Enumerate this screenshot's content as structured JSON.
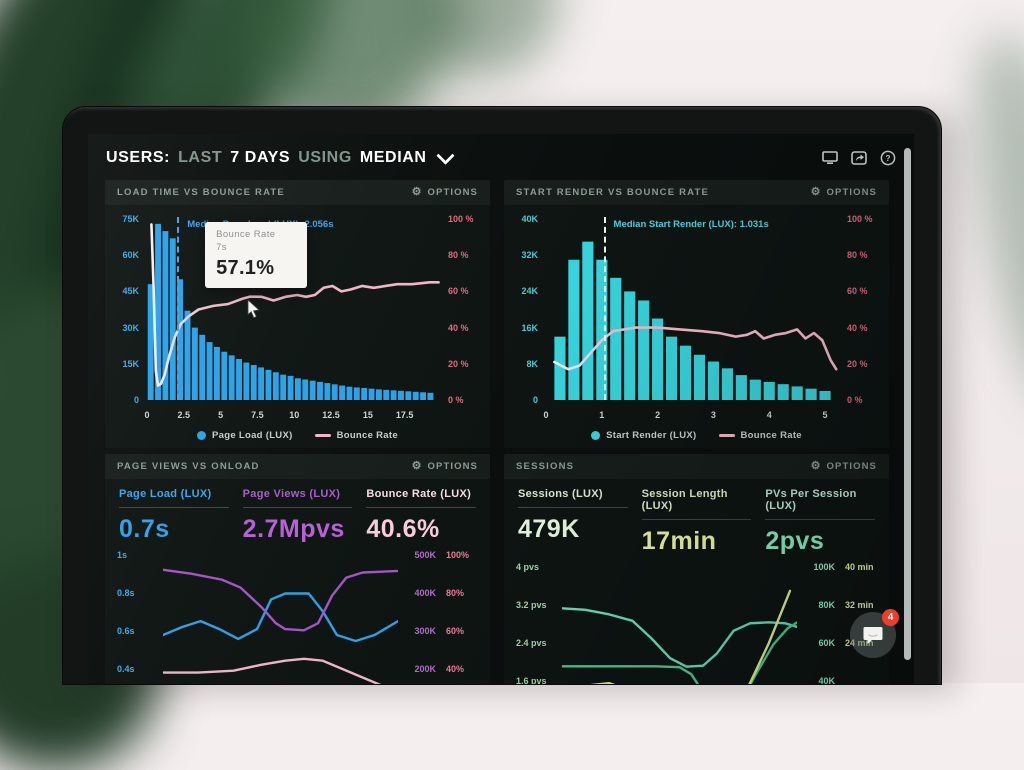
{
  "header": {
    "title_parts": [
      {
        "text": "USERS:"
      },
      {
        "text": "LAST"
      },
      {
        "text": "7 DAYS"
      },
      {
        "text": "USING"
      },
      {
        "text": "MEDIAN"
      }
    ],
    "toolbar_icons": [
      "monitor-icon",
      "share-icon",
      "help-icon"
    ]
  },
  "options_label": "OPTIONS",
  "panels": {
    "load_time": {
      "title": "LOAD TIME VS BOUNCE RATE"
    },
    "start_render": {
      "title": "START RENDER VS BOUNCE RATE"
    },
    "page_views": {
      "title": "PAGE VIEWS VS ONLOAD",
      "metrics": [
        {
          "label": "Page Load (LUX)",
          "value": "0.7s",
          "label_color": "#3aa5ec",
          "value_color": "#2f9fe8"
        },
        {
          "label": "Page Views (LUX)",
          "value": "2.7Mpvs",
          "label_color": "#a65cc8",
          "value_color": "#b75fd6"
        },
        {
          "label": "Bounce Rate (LUX)",
          "value": "40.6%",
          "label_color": "#f3dde6",
          "value_color": "#f6cdda"
        }
      ]
    },
    "sessions": {
      "title": "SESSIONS",
      "metrics": [
        {
          "label": "Sessions (LUX)",
          "value": "479K",
          "label_color": "#dcead9",
          "value_color": "#e7f5e3"
        },
        {
          "label": "Session Length (LUX)",
          "value": "17min",
          "label_color": "#dfe8c8",
          "value_color": "#e9f2a6"
        },
        {
          "label": "PVs Per Session (LUX)",
          "value": "2pvs",
          "label_color": "#bfe8d5",
          "value_color": "#86ecc0"
        }
      ]
    }
  },
  "tooltip": {
    "panel": "load_time",
    "title": "Bounce Rate",
    "subtitle": "7s",
    "value": "57.1%"
  },
  "chat_widget": {
    "badge": "4"
  },
  "chart_data": [
    {
      "id": "load_time",
      "type": "bar+line",
      "title": "LOAD TIME VS BOUNCE RATE",
      "x_min": 0,
      "x_max": 19.9,
      "x_ticks": [
        0,
        2.5,
        5,
        7.5,
        10,
        12.5,
        15,
        17.5
      ],
      "left_axis": {
        "ticks": [
          "75K",
          "60K",
          "45K",
          "30K",
          "15K",
          "0"
        ],
        "color": "#3fa9e8"
      },
      "right_axis": {
        "ticks": [
          "100 %",
          "80 %",
          "60 %",
          "40 %",
          "20 %",
          "0 %"
        ],
        "color": "#e06a82"
      },
      "bars": {
        "name": "Page Load (LUX)",
        "color": "#2aa2e8",
        "unit": "K",
        "y_max": 75,
        "x_start": 0.25,
        "x_step": 0.5,
        "values": [
          48,
          73,
          70,
          67,
          50,
          37,
          30,
          27,
          24,
          22,
          20,
          18.5,
          17,
          15.5,
          14.5,
          13.5,
          12.5,
          11.5,
          10.5,
          10,
          9,
          8.5,
          8,
          7.5,
          7,
          6.5,
          6,
          5.5,
          5.2,
          5,
          4.7,
          4.4,
          4.2,
          4,
          3.8,
          3.6,
          3.4,
          3.2,
          3
        ]
      },
      "line": {
        "name": "Bounce Rate",
        "color": "#f2b6c5",
        "unit": "%",
        "y_max": 100,
        "points": [
          [
            0.3,
            97
          ],
          [
            0.45,
            62
          ],
          [
            0.6,
            16
          ],
          [
            0.75,
            8
          ],
          [
            0.95,
            9
          ],
          [
            1.2,
            14
          ],
          [
            1.5,
            24
          ],
          [
            1.9,
            35
          ],
          [
            2.3,
            42
          ],
          [
            2.8,
            46
          ],
          [
            3.5,
            50
          ],
          [
            4.5,
            52
          ],
          [
            5.5,
            53
          ],
          [
            6.5,
            56
          ],
          [
            7,
            57.1
          ],
          [
            7.8,
            57
          ],
          [
            8.6,
            55
          ],
          [
            9.4,
            57
          ],
          [
            10.2,
            58
          ],
          [
            10.8,
            57
          ],
          [
            11.4,
            58
          ],
          [
            12,
            62
          ],
          [
            12.6,
            63
          ],
          [
            13.2,
            60
          ],
          [
            13.8,
            61
          ],
          [
            14.6,
            63
          ],
          [
            15.4,
            62
          ],
          [
            16.2,
            63
          ],
          [
            17,
            64
          ],
          [
            18,
            64
          ],
          [
            19.2,
            65
          ],
          [
            19.8,
            65
          ]
        ]
      },
      "median": {
        "x": 2.056,
        "label": "Median Page Load (LUX): 2.056s",
        "color": "#3da4ea",
        "line_color": "#3da4ea"
      },
      "legend": [
        {
          "label": "Page Load (LUX)",
          "marker": "dot",
          "color": "#2aa2e8"
        },
        {
          "label": "Bounce Rate",
          "marker": "line",
          "color": "#f2b6c5"
        }
      ]
    },
    {
      "id": "start_render",
      "type": "bar+line",
      "title": "START RENDER VS BOUNCE RATE",
      "x_min": 0,
      "x_max": 5.25,
      "x_ticks": [
        0,
        1,
        2,
        3,
        4,
        5
      ],
      "left_axis": {
        "ticks": [
          "40K",
          "32K",
          "24K",
          "16K",
          "8K",
          "0"
        ],
        "color": "#48cbd6"
      },
      "right_axis": {
        "ticks": [
          "100 %",
          "80 %",
          "60 %",
          "40 %",
          "20 %",
          "0 %"
        ],
        "color": "#e06a82"
      },
      "bars": {
        "name": "Start Render (LUX)",
        "color": "#38d2da",
        "unit": "K",
        "y_max": 40,
        "x_start": 0.25,
        "x_step": 0.25,
        "values": [
          14,
          31,
          35,
          31,
          27,
          24,
          22,
          18,
          14,
          12,
          10,
          8.5,
          7,
          5.5,
          4.5,
          4,
          3.5,
          3,
          2.5,
          2
        ]
      },
      "line": {
        "name": "Bounce Rate",
        "color": "#f2b6c5",
        "unit": "%",
        "y_max": 100,
        "points": [
          [
            0.15,
            21
          ],
          [
            0.4,
            17
          ],
          [
            0.6,
            19
          ],
          [
            0.8,
            26
          ],
          [
            1.0,
            33
          ],
          [
            1.2,
            38
          ],
          [
            1.6,
            40
          ],
          [
            2.0,
            40
          ],
          [
            2.4,
            39
          ],
          [
            2.8,
            38
          ],
          [
            3.1,
            37
          ],
          [
            3.4,
            35
          ],
          [
            3.6,
            36
          ],
          [
            3.75,
            38
          ],
          [
            3.9,
            34
          ],
          [
            4.1,
            36
          ],
          [
            4.3,
            37
          ],
          [
            4.5,
            39
          ],
          [
            4.65,
            34
          ],
          [
            4.8,
            37
          ],
          [
            4.95,
            33
          ],
          [
            5.1,
            22
          ],
          [
            5.2,
            17
          ]
        ]
      },
      "median": {
        "x": 1.031,
        "label": "Median Start Render (LUX): 1.031s",
        "color": "#4fd0dd",
        "line_color": "#e8f4f2"
      },
      "legend": [
        {
          "label": "Start Render (LUX)",
          "marker": "dot",
          "color": "#38d2da"
        },
        {
          "label": "Bounce Rate",
          "marker": "line",
          "color": "#f2b6c5"
        }
      ]
    },
    {
      "id": "page_views",
      "type": "line",
      "title": "PAGE VIEWS VS ONLOAD",
      "x_min": 0,
      "x_max": 1,
      "left_axis": {
        "ticks": [
          "1s",
          "0.8s",
          "0.6s",
          "0.4s"
        ],
        "color": "#3fa9e8"
      },
      "right_axis": {
        "ticks": [
          [
            "500K",
            "100%"
          ],
          [
            "400K",
            "80%"
          ],
          [
            "300K",
            "60%"
          ],
          [
            "200K",
            "40%"
          ]
        ],
        "colors": [
          "#b06cc9",
          "#e87d9a"
        ]
      },
      "series": [
        {
          "name": "Page Load (LUX)",
          "unit": "s",
          "color": "#2e9fe6",
          "range": [
            0.14,
            1.04
          ],
          "points": [
            [
              0,
              0.6
            ],
            [
              0.08,
              0.64
            ],
            [
              0.16,
              0.67
            ],
            [
              0.24,
              0.63
            ],
            [
              0.32,
              0.58
            ],
            [
              0.4,
              0.63
            ],
            [
              0.46,
              0.78
            ],
            [
              0.52,
              0.81
            ],
            [
              0.62,
              0.81
            ],
            [
              0.68,
              0.72
            ],
            [
              0.74,
              0.6
            ],
            [
              0.82,
              0.57
            ],
            [
              0.9,
              0.6
            ],
            [
              1,
              0.67
            ]
          ]
        },
        {
          "name": "Page Views (LUX)",
          "unit": "K",
          "color": "#a254c4",
          "range": [
            70,
            520
          ],
          "points": [
            [
              0,
              465
            ],
            [
              0.12,
              455
            ],
            [
              0.25,
              440
            ],
            [
              0.33,
              420
            ],
            [
              0.42,
              370
            ],
            [
              0.48,
              330
            ],
            [
              0.52,
              315
            ],
            [
              0.6,
              312
            ],
            [
              0.66,
              330
            ],
            [
              0.72,
              400
            ],
            [
              0.78,
              445
            ],
            [
              0.85,
              458
            ],
            [
              1,
              462
            ]
          ]
        },
        {
          "name": "Bounce Rate (LUX)",
          "unit": "%",
          "color": "#eeb3c4",
          "range": [
            14,
            104
          ],
          "points": [
            [
              0,
              41
            ],
            [
              0.15,
              41
            ],
            [
              0.3,
              42
            ],
            [
              0.42,
              45
            ],
            [
              0.52,
              47
            ],
            [
              0.6,
              48
            ],
            [
              0.68,
              47
            ],
            [
              0.78,
              42
            ],
            [
              0.88,
              37
            ],
            [
              1,
              31
            ]
          ]
        }
      ]
    },
    {
      "id": "sessions",
      "type": "line",
      "title": "SESSIONS",
      "x_min": 0,
      "x_max": 1,
      "left_axis": {
        "ticks": [
          "4 pvs",
          "3.2 pvs",
          "2.4 pvs",
          "1.6 pvs"
        ],
        "color": "#9fd9ae"
      },
      "right_axis": {
        "ticks": [
          [
            "100K",
            "40 min"
          ],
          [
            "80K",
            "32 min"
          ],
          [
            "60K",
            "24 min"
          ],
          [
            "40K",
            ""
          ]
        ],
        "colors": [
          "#8fe9c2",
          "#dff0a2"
        ]
      },
      "series": [
        {
          "name": "PVs Per Session (LUX)",
          "unit": "pvs",
          "color": "#63e0b8",
          "range": [
            0.6,
            4.17
          ],
          "points": [
            [
              0,
              3.2
            ],
            [
              0.1,
              3.17
            ],
            [
              0.2,
              3.08
            ],
            [
              0.3,
              2.95
            ],
            [
              0.38,
              2.6
            ],
            [
              0.46,
              2.2
            ],
            [
              0.53,
              2.03
            ],
            [
              0.6,
              2.05
            ],
            [
              0.66,
              2.3
            ],
            [
              0.73,
              2.75
            ],
            [
              0.8,
              2.9
            ],
            [
              0.88,
              2.92
            ],
            [
              0.95,
              2.9
            ],
            [
              1,
              2.83
            ]
          ]
        },
        {
          "name": "Sessions (LUX)",
          "unit": "K",
          "color": "#49c98e",
          "range": [
            15,
            104.3
          ],
          "points": [
            [
              0,
              51
            ],
            [
              0.2,
              51
            ],
            [
              0.4,
              51
            ],
            [
              0.5,
              50.5
            ],
            [
              0.55,
              47
            ],
            [
              0.6,
              38
            ],
            [
              0.65,
              29
            ],
            [
              0.7,
              27
            ],
            [
              0.76,
              33
            ],
            [
              0.83,
              48
            ],
            [
              0.9,
              62
            ],
            [
              0.96,
              70
            ],
            [
              1,
              73
            ]
          ]
        },
        {
          "name": "Session Length (LUX)",
          "unit": "min",
          "color": "#dcee9a",
          "range": [
            6,
            41.7
          ],
          "points": [
            [
              0,
              15.5
            ],
            [
              0.1,
              16.5
            ],
            [
              0.2,
              17
            ],
            [
              0.3,
              15.5
            ],
            [
              0.4,
              12.8
            ],
            [
              0.5,
              10.8
            ],
            [
              0.58,
              9.8
            ],
            [
              0.66,
              10
            ],
            [
              0.72,
              11.5
            ],
            [
              0.8,
              17
            ],
            [
              0.88,
              25
            ],
            [
              0.97,
              35.5
            ]
          ]
        }
      ]
    }
  ]
}
